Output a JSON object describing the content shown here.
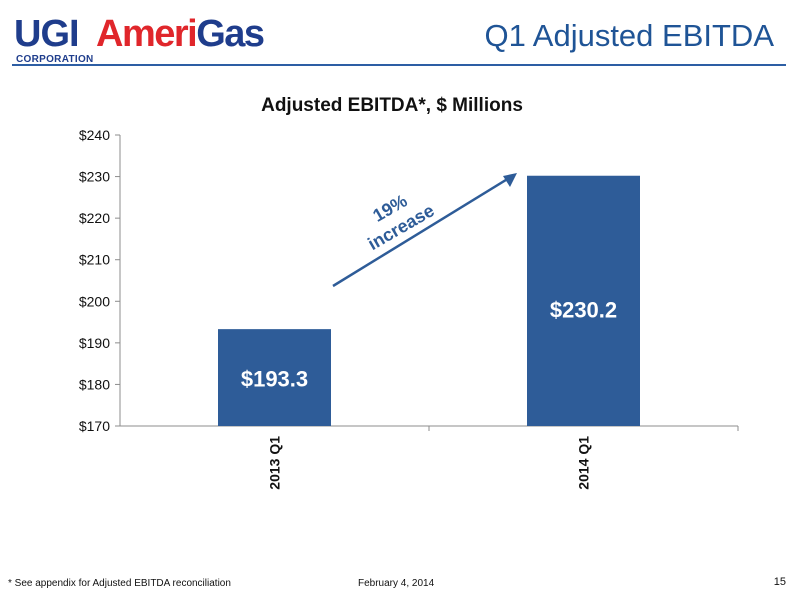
{
  "header": {
    "logo_ugi": "UGI",
    "logo_corporation": "CORPORATION",
    "logo_ameri": "Ameri",
    "logo_gas": "Gas",
    "slide_title": "Q1 Adjusted EBITDA"
  },
  "chart_data": {
    "type": "bar",
    "title": "Adjusted EBITDA*, $ Millions",
    "categories": [
      "2013 Q1",
      "2014 Q1"
    ],
    "values": [
      193.3,
      230.2
    ],
    "data_labels": [
      "$193.3",
      "$230.2"
    ],
    "ylim": [
      170,
      240
    ],
    "yticks": [
      170,
      180,
      190,
      200,
      210,
      220,
      230,
      240
    ],
    "ytick_labels": [
      "$170",
      "$180",
      "$190",
      "$200",
      "$210",
      "$220",
      "$230",
      "$240"
    ],
    "xlabel": "",
    "ylabel": "",
    "grid": false,
    "bar_color": "#2e5c98",
    "annotation": {
      "line1": "19%",
      "line2": "increase",
      "color": "#2e5c98"
    }
  },
  "footer": {
    "footnote": "* See appendix for Adjusted EBITDA reconciliation",
    "date": "February 4, 2014",
    "page_number": "15"
  }
}
